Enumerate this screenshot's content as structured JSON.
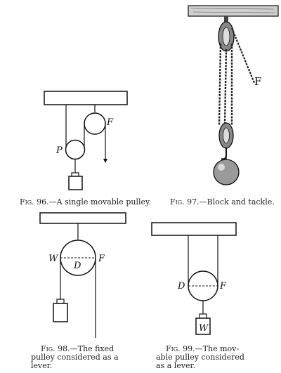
{
  "figures": [
    {
      "id": "fig96",
      "fig_label": "Fig. 96.",
      "caption_text": "—A single movable pulley.",
      "labels": {
        "fixed_pulley": "F",
        "movable_pulley": "P"
      }
    },
    {
      "id": "fig97",
      "fig_label": "Fig. 97.",
      "caption_text": "—Block and tackle.",
      "labels": {
        "force": "F"
      }
    },
    {
      "id": "fig98",
      "fig_label": "Fig. 98.",
      "caption_lines": [
        "—The fixed",
        "pulley considered as a",
        "lever."
      ],
      "labels": {
        "weight_side": "W",
        "center": "D",
        "force_side": "F"
      }
    },
    {
      "id": "fig99",
      "fig_label": "Fig. 99.",
      "caption_lines": [
        "—The mov-",
        "able pulley considered",
        "as a lever."
      ],
      "labels": {
        "center": "D",
        "force_side": "F",
        "weight": "W"
      }
    }
  ]
}
